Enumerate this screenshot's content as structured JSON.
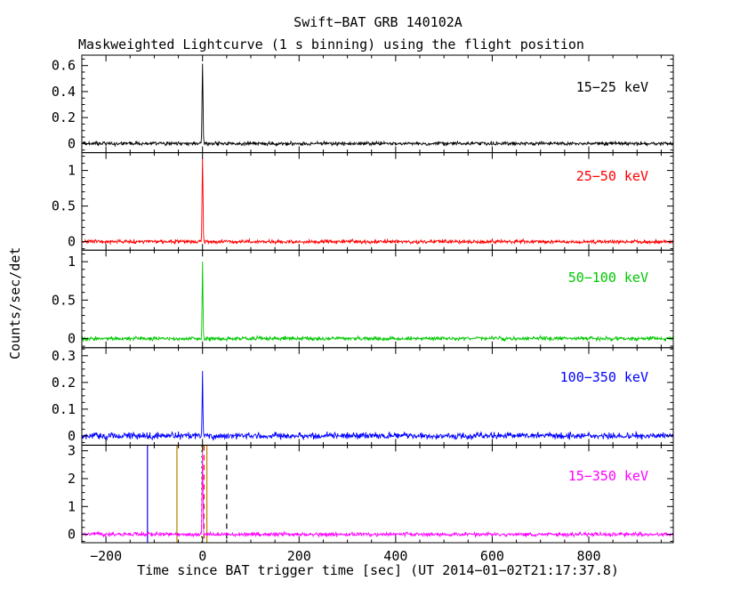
{
  "chart_data": {
    "type": "line",
    "title": "Swift−BAT GRB 140102A",
    "subtitle": "Maskweighted Lightcurve (1 s binning) using the flight position",
    "xlabel": "Time since BAT trigger time [sec] (UT 2014−01−02T21:17:37.8)",
    "ylabel": "Counts/sec/det",
    "x_range": [
      -250,
      975
    ],
    "x_major_ticks": [
      -200,
      0,
      200,
      400,
      600,
      800
    ],
    "x_tick_labels": [
      "−200",
      "0",
      "200",
      "400",
      "600",
      "800"
    ],
    "x_minor_step": 50,
    "bin_seconds": 1,
    "grid": false,
    "legend_position": "in-panel-right",
    "panels": [
      {
        "label": "15−25 keV",
        "color": "#000000",
        "ylim": [
          -0.07,
          0.68
        ],
        "yticks": [
          0,
          0.2,
          0.4,
          0.6
        ],
        "ytick_labels": [
          "0",
          "0.2",
          "0.4",
          "0.6"
        ],
        "y_minor_step": 0.05,
        "baseline": 0,
        "noise_sigma": 0.007,
        "peak": {
          "t": 0,
          "value": 0.62,
          "width_s": 1.5
        }
      },
      {
        "label": "25−50 keV",
        "color": "#ff0000",
        "ylim": [
          -0.12,
          1.25
        ],
        "yticks": [
          0,
          0.5,
          1
        ],
        "ytick_labels": [
          "0",
          "0.5",
          "1"
        ],
        "y_minor_step": 0.1,
        "baseline": 0,
        "noise_sigma": 0.013,
        "peak": {
          "t": 0,
          "value": 1.18,
          "width_s": 1.5
        }
      },
      {
        "label": "50−100 keV",
        "color": "#00c800",
        "ylim": [
          -0.12,
          1.15
        ],
        "yticks": [
          0,
          0.5,
          1
        ],
        "ytick_labels": [
          "0",
          "0.5",
          "1"
        ],
        "y_minor_step": 0.1,
        "baseline": 0,
        "noise_sigma": 0.013,
        "peak": {
          "t": 0,
          "value": 1.0,
          "width_s": 1.3
        }
      },
      {
        "label": "100−350 keV",
        "color": "#0000ff",
        "ylim": [
          -0.035,
          0.33
        ],
        "yticks": [
          0,
          0.1,
          0.2,
          0.3
        ],
        "ytick_labels": [
          "0",
          "0.1",
          "0.2",
          "0.3"
        ],
        "y_minor_step": 0.025,
        "baseline": 0,
        "noise_sigma": 0.006,
        "peak": {
          "t": 0,
          "value": 0.235,
          "width_s": 1.2
        }
      },
      {
        "label": "15−350 keV",
        "color": "#ff00ff",
        "ylim": [
          -0.3,
          3.2
        ],
        "yticks": [
          0,
          1,
          2,
          3
        ],
        "ytick_labels": [
          "0",
          "1",
          "2",
          "3"
        ],
        "y_minor_step": 0.25,
        "baseline": 0,
        "noise_sigma": 0.035,
        "peak": {
          "t": 0,
          "value": 3.05,
          "width_s": 1.4
        }
      }
    ],
    "bottom_panel_markers": [
      {
        "t": -114,
        "color": "#0000ff",
        "style": "solid"
      },
      {
        "t": -53,
        "color": "#b08000",
        "style": "solid"
      },
      {
        "t": -2,
        "color": "#00c800",
        "style": "dotted"
      },
      {
        "t": 3,
        "color": "#ff0000",
        "style": "dashed"
      },
      {
        "t": 9,
        "color": "#b08000",
        "style": "solid"
      },
      {
        "t": 50,
        "color": "#000000",
        "style": "dashed"
      }
    ]
  }
}
